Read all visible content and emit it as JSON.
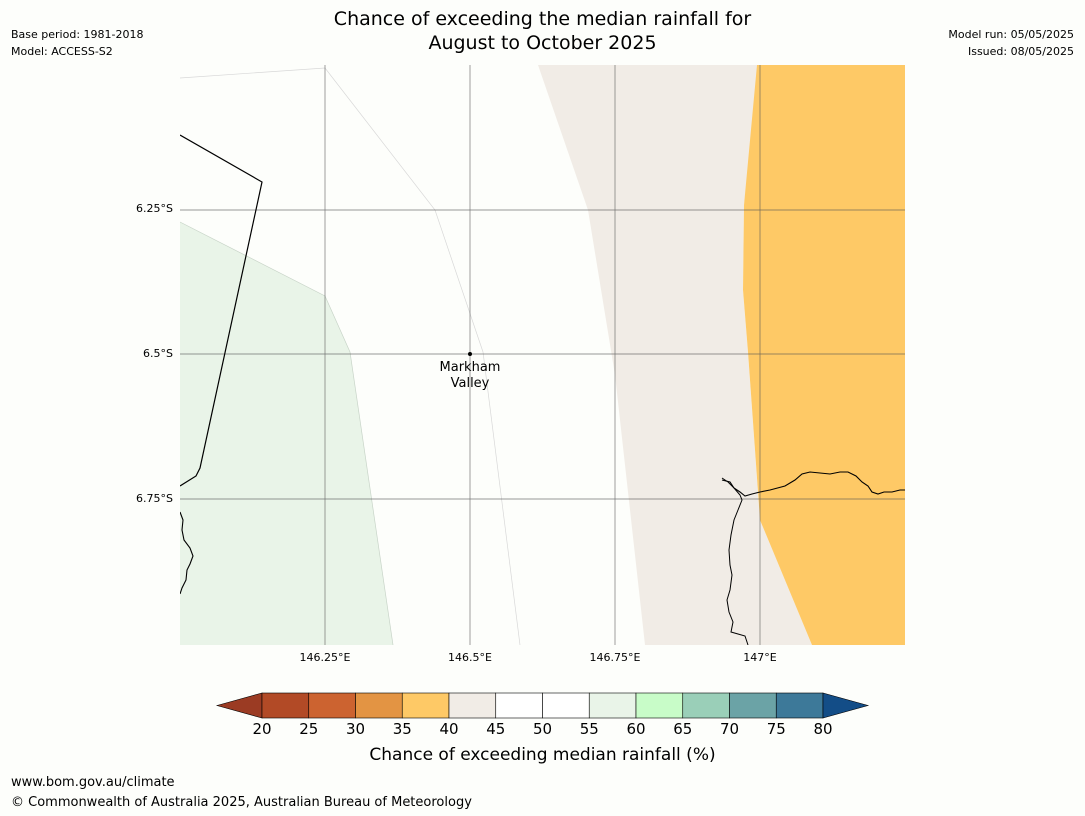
{
  "header": {
    "title_line1": "Chance of exceeding the median rainfall for",
    "title_line2": "August to October 2025",
    "base_period": "Base period: 1981-2018",
    "model": "Model: ACCESS-S2",
    "model_run": "Model run: 05/05/2025",
    "issued": "Issued: 08/05/2025"
  },
  "map": {
    "latitude_labels": [
      "6.25°S",
      "6.5°S",
      "6.75°S"
    ],
    "longitude_labels": [
      "146.25°E",
      "146.5°E",
      "146.75°E",
      "147°E"
    ],
    "place": {
      "name_line1": "Markham",
      "name_line2": "Valley"
    },
    "region_colors": {
      "band_35_40": "#fec966",
      "band_40_45": "#f1ece6",
      "band_45_55": "#fdfefb",
      "band_55_60": "#e9f4e8"
    }
  },
  "colorbar": {
    "ticks": [
      "20",
      "25",
      "30",
      "35",
      "40",
      "45",
      "50",
      "55",
      "60",
      "65",
      "70",
      "75",
      "80"
    ],
    "colors": [
      "#9b3b23",
      "#b24a26",
      "#cc6330",
      "#e39443",
      "#fec966",
      "#f1ece6",
      "#ffffff",
      "#ffffff",
      "#e9f4e8",
      "#c8fcc8",
      "#9acfb8",
      "#6ba3a6",
      "#3d7999",
      "#134d87"
    ],
    "title": "Chance of exceeding median rainfall (%)"
  },
  "footer": {
    "url": "www.bom.gov.au/climate",
    "copyright": "© Commonwealth of Australia 2025, Australian Bureau of Meteorology"
  }
}
